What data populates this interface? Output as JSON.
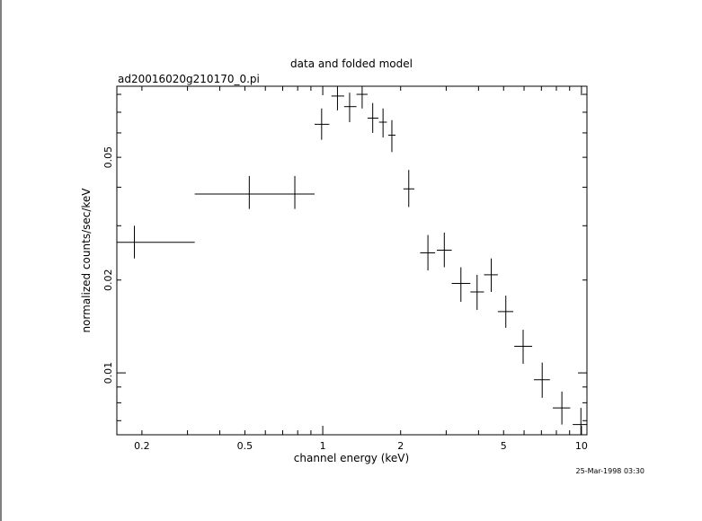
{
  "chart_data": {
    "type": "scatter",
    "title": "data and folded model",
    "subtitle": "ad20016020g210170_0.pi",
    "xlabel": "channel energy (keV)",
    "ylabel": "normalized counts/sec/keV",
    "timestamp": "25-Mar-1998 03:30",
    "xscale": "log",
    "yscale": "log",
    "xlim": [
      0.16,
      10.5
    ],
    "ylim": [
      0.0063,
      0.085
    ],
    "x_ticks": [
      {
        "value": 0.2,
        "label": "0.2"
      },
      {
        "value": 0.5,
        "label": "0.5"
      },
      {
        "value": 1,
        "label": "1"
      },
      {
        "value": 2,
        "label": "2"
      },
      {
        "value": 5,
        "label": "5"
      },
      {
        "value": 10,
        "label": "10"
      }
    ],
    "y_ticks": [
      {
        "value": 0.01,
        "label": "0.01"
      },
      {
        "value": 0.02,
        "label": "0.02"
      },
      {
        "value": 0.05,
        "label": "0.05"
      }
    ],
    "series": [
      {
        "points": [
          {
            "x": 0.187,
            "xlo": 0.16,
            "xhi": 0.32,
            "y": 0.0265,
            "ylo": 0.0235,
            "yhi": 0.03
          },
          {
            "x": 0.52,
            "xlo": 0.32,
            "xhi": 0.78,
            "y": 0.038,
            "ylo": 0.034,
            "yhi": 0.0435
          },
          {
            "x": 0.78,
            "xlo": 0.52,
            "xhi": 0.93,
            "y": 0.038,
            "ylo": 0.034,
            "yhi": 0.0435
          },
          {
            "x": 0.99,
            "xlo": 0.93,
            "xhi": 1.06,
            "y": 0.064,
            "ylo": 0.057,
            "yhi": 0.072
          },
          {
            "x": 1.14,
            "xlo": 1.08,
            "xhi": 1.21,
            "y": 0.079,
            "ylo": 0.071,
            "yhi": 0.088
          },
          {
            "x": 1.27,
            "xlo": 1.21,
            "xhi": 1.35,
            "y": 0.073,
            "ylo": 0.065,
            "yhi": 0.081
          },
          {
            "x": 1.42,
            "xlo": 1.35,
            "xhi": 1.49,
            "y": 0.08,
            "ylo": 0.072,
            "yhi": 0.088
          },
          {
            "x": 1.56,
            "xlo": 1.49,
            "xhi": 1.64,
            "y": 0.067,
            "ylo": 0.06,
            "yhi": 0.075
          },
          {
            "x": 1.71,
            "xlo": 1.65,
            "xhi": 1.77,
            "y": 0.065,
            "ylo": 0.058,
            "yhi": 0.072
          },
          {
            "x": 1.85,
            "xlo": 1.79,
            "xhi": 1.91,
            "y": 0.059,
            "ylo": 0.052,
            "yhi": 0.066
          },
          {
            "x": 2.15,
            "xlo": 2.05,
            "xhi": 2.26,
            "y": 0.0395,
            "ylo": 0.0345,
            "yhi": 0.0455
          },
          {
            "x": 2.55,
            "xlo": 2.38,
            "xhi": 2.72,
            "y": 0.0245,
            "ylo": 0.0215,
            "yhi": 0.028
          },
          {
            "x": 2.95,
            "xlo": 2.76,
            "xhi": 3.15,
            "y": 0.025,
            "ylo": 0.022,
            "yhi": 0.0285
          },
          {
            "x": 3.42,
            "xlo": 3.15,
            "xhi": 3.72,
            "y": 0.0195,
            "ylo": 0.017,
            "yhi": 0.022
          },
          {
            "x": 3.95,
            "xlo": 3.72,
            "xhi": 4.2,
            "y": 0.0183,
            "ylo": 0.016,
            "yhi": 0.0208
          },
          {
            "x": 4.48,
            "xlo": 4.2,
            "xhi": 4.75,
            "y": 0.0208,
            "ylo": 0.0183,
            "yhi": 0.0235
          },
          {
            "x": 5.1,
            "xlo": 4.75,
            "xhi": 5.45,
            "y": 0.0158,
            "ylo": 0.014,
            "yhi": 0.0178
          },
          {
            "x": 5.95,
            "xlo": 5.5,
            "xhi": 6.45,
            "y": 0.0122,
            "ylo": 0.0107,
            "yhi": 0.0138
          },
          {
            "x": 7.05,
            "xlo": 6.55,
            "xhi": 7.55,
            "y": 0.0095,
            "ylo": 0.0083,
            "yhi": 0.0108
          },
          {
            "x": 8.4,
            "xlo": 7.75,
            "xhi": 9.05,
            "y": 0.0077,
            "ylo": 0.0068,
            "yhi": 0.0087
          },
          {
            "x": 9.95,
            "xlo": 9.25,
            "xhi": 10.5,
            "y": 0.0068,
            "ylo": 0.006,
            "yhi": 0.0077
          }
        ]
      }
    ]
  }
}
